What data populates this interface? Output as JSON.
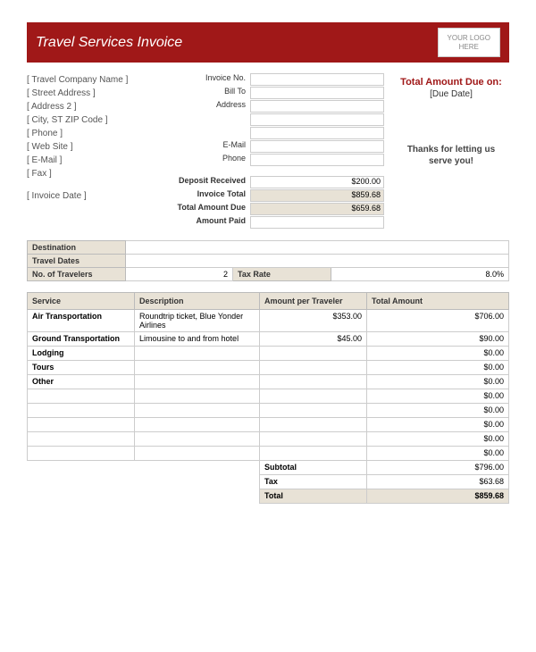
{
  "header": {
    "title": "Travel Services Invoice",
    "logo_line1": "YOUR LOGO",
    "logo_line2": "HERE"
  },
  "company": {
    "name": "[ Travel Company Name ]",
    "street": "[ Street Address ]",
    "address2": "[ Address 2 ]",
    "csz": "[ City, ST  ZIP Code ]",
    "phone": "[ Phone ]",
    "website": "[ Web Site ]",
    "email": "[ E-Mail ]",
    "fax": "[ Fax ]",
    "invoice_date": "[ Invoice Date ]"
  },
  "labels": {
    "invoice_no": "Invoice No.",
    "bill_to": "Bill To",
    "address": "Address",
    "email": "E-Mail",
    "phone": "Phone",
    "deposit": "Deposit Received",
    "inv_total": "Invoice Total",
    "amt_due": "Total Amount Due",
    "amt_paid": "Amount Paid"
  },
  "vals": {
    "deposit": "$200.00",
    "inv_total": "$859.68",
    "amt_due": "$659.68",
    "amt_paid": ""
  },
  "right": {
    "due_title": "Total Amount Due on:",
    "due_date": "[Due Date]",
    "thanks1": "Thanks for letting us",
    "thanks2": "serve you!"
  },
  "summary": {
    "dest_lbl": "Destination",
    "dates_lbl": "Travel Dates",
    "travelers_lbl": "No. of Travelers",
    "travelers": "2",
    "taxrate_lbl": "Tax Rate",
    "taxrate": "8.0%"
  },
  "cols": {
    "service": "Service",
    "desc": "Description",
    "per": "Amount per Traveler",
    "total": "Total Amount"
  },
  "rows": [
    {
      "s": "Air Transportation",
      "d": "Roundtrip ticket, Blue Yonder Airlines",
      "p": "$353.00",
      "t": "$706.00"
    },
    {
      "s": "Ground Transportation",
      "d": "Limousine to and from hotel",
      "p": "$45.00",
      "t": "$90.00"
    },
    {
      "s": "Lodging",
      "d": "",
      "p": "",
      "t": "$0.00"
    },
    {
      "s": "Tours",
      "d": "",
      "p": "",
      "t": "$0.00"
    },
    {
      "s": "Other",
      "d": "",
      "p": "",
      "t": "$0.00"
    },
    {
      "s": "",
      "d": "",
      "p": "",
      "t": "$0.00"
    },
    {
      "s": "",
      "d": "",
      "p": "",
      "t": "$0.00"
    },
    {
      "s": "",
      "d": "",
      "p": "",
      "t": "$0.00"
    },
    {
      "s": "",
      "d": "",
      "p": "",
      "t": "$0.00"
    },
    {
      "s": "",
      "d": "",
      "p": "",
      "t": "$0.00"
    }
  ],
  "totals": {
    "subtotal_lbl": "Subtotal",
    "subtotal": "$796.00",
    "tax_lbl": "Tax",
    "tax": "$63.68",
    "total_lbl": "Total",
    "total": "$859.68"
  }
}
